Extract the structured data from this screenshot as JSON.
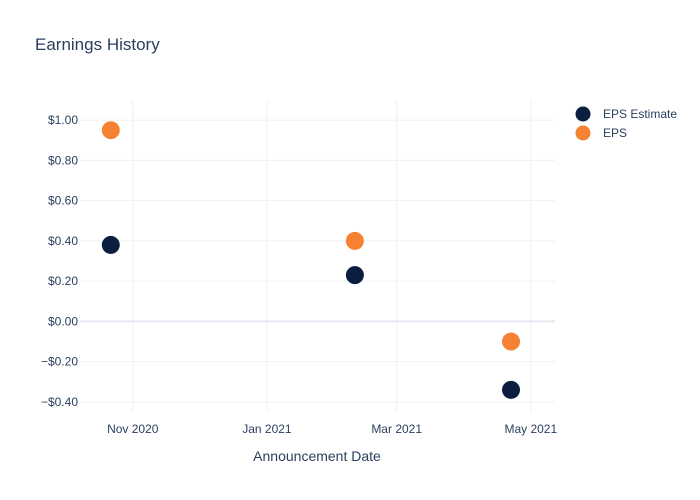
{
  "chart_data": {
    "type": "scatter",
    "title": "Earnings History",
    "xlabel": "Announcement Date",
    "ylabel": "",
    "x_axis": {
      "type": "date",
      "range": [
        "2020-10-08",
        "2021-05-12"
      ],
      "ticks": [
        {
          "date": "2020-11-01",
          "label": "Nov 2020"
        },
        {
          "date": "2021-01-01",
          "label": "Jan 2021"
        },
        {
          "date": "2021-03-01",
          "label": "Mar 2021"
        },
        {
          "date": "2021-05-01",
          "label": "May 2021"
        }
      ]
    },
    "y_axis": {
      "range": [
        -0.45,
        1.1
      ],
      "ticks": [
        {
          "value": 1.0,
          "label": "$1.00"
        },
        {
          "value": 0.8,
          "label": "$0.80"
        },
        {
          "value": 0.6,
          "label": "$0.60"
        },
        {
          "value": 0.4,
          "label": "$0.40"
        },
        {
          "value": 0.2,
          "label": "$0.20"
        },
        {
          "value": 0.0,
          "label": "$0.00"
        },
        {
          "value": -0.2,
          "label": "−$0.20"
        },
        {
          "value": -0.4,
          "label": "−$0.40"
        }
      ]
    },
    "grid": true,
    "legend_position": "top-right",
    "series": [
      {
        "name": "EPS Estimate",
        "color": "#0b1e3f",
        "points": [
          {
            "x": "2020-10-22",
            "y": 0.38
          },
          {
            "x": "2021-02-10",
            "y": 0.23
          },
          {
            "x": "2021-04-22",
            "y": -0.34
          }
        ]
      },
      {
        "name": "EPS",
        "color": "#f58233",
        "points": [
          {
            "x": "2020-10-22",
            "y": 0.95
          },
          {
            "x": "2021-02-10",
            "y": 0.4
          },
          {
            "x": "2021-04-22",
            "y": -0.1
          }
        ]
      }
    ]
  }
}
